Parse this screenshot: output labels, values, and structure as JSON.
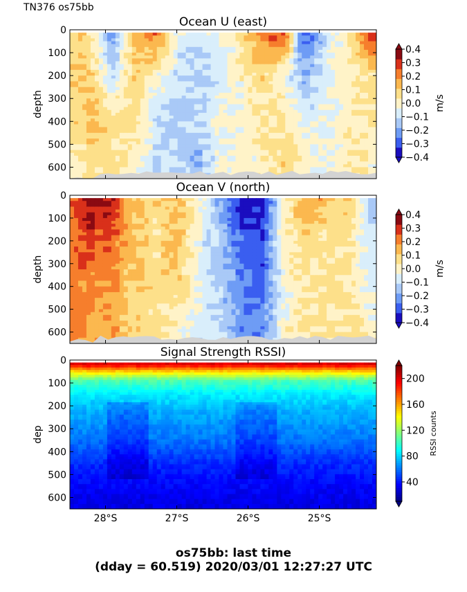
{
  "header": {
    "label": "TN376 os75bb"
  },
  "footer": {
    "line1": "os75bb: last time",
    "line2": "(dday = 60.519) 2020/03/01 12:27:27 UTC"
  },
  "colors": {
    "velocity_scale": [
      "#1a0dbf",
      "#3a5ef0",
      "#6e9cf5",
      "#a9c9f7",
      "#d9eefb",
      "#fff3c8",
      "#fde08a",
      "#fbb84f",
      "#f67e2c",
      "#d9301a",
      "#8a0a12"
    ],
    "rssi_scale": [
      "#00007f",
      "#0000ff",
      "#007fff",
      "#00ffff",
      "#7fff7f",
      "#ffff00",
      "#ff7f00",
      "#ff0000",
      "#7f0000"
    ],
    "bottom_mask": "#d3d3d3"
  },
  "chart_data": [
    {
      "type": "heatmap",
      "title": "Ocean U (east)",
      "xlabel": "",
      "ylabel": "depth",
      "colorbar_label": "m/s",
      "colorbar_ticks": [
        "0.4",
        "0.3",
        "0.2",
        "0.1",
        "0.0",
        "−0.1",
        "−0.2",
        "−0.3",
        "−0.4"
      ],
      "clim": [
        -0.4,
        0.4
      ],
      "ylim": [
        650,
        0
      ],
      "yticks": [
        "0",
        "100",
        "200",
        "300",
        "400",
        "500",
        "600"
      ],
      "xticks": [
        "28°S",
        "27°S",
        "26°S",
        "25°S"
      ],
      "x_labels_shown": false,
      "columns": [
        {
          "lat": -28.5,
          "profile": [
            0.15,
            0.1,
            0.05,
            0.0
          ]
        },
        {
          "lat": -28.2,
          "profile": [
            0.05,
            0.1,
            0.15,
            0.05
          ]
        },
        {
          "lat": -27.9,
          "profile": [
            -0.25,
            -0.1,
            0.05,
            0.1
          ]
        },
        {
          "lat": -27.6,
          "profile": [
            0.15,
            0.1,
            0.1,
            0.0
          ]
        },
        {
          "lat": -27.3,
          "profile": [
            0.25,
            0.0,
            -0.1,
            -0.1
          ]
        },
        {
          "lat": -27.0,
          "profile": [
            -0.05,
            -0.1,
            -0.15,
            -0.1
          ]
        },
        {
          "lat": -26.7,
          "profile": [
            -0.1,
            -0.15,
            -0.15,
            -0.2
          ]
        },
        {
          "lat": -26.4,
          "profile": [
            -0.05,
            -0.1,
            0.0,
            -0.05
          ]
        },
        {
          "lat": -26.1,
          "profile": [
            0.05,
            0.0,
            -0.05,
            0.0
          ]
        },
        {
          "lat": -25.8,
          "profile": [
            0.25,
            0.1,
            0.05,
            0.0
          ]
        },
        {
          "lat": -25.5,
          "profile": [
            0.3,
            -0.05,
            0.05,
            0.1
          ]
        },
        {
          "lat": -25.2,
          "profile": [
            -0.35,
            -0.2,
            -0.05,
            0.0
          ]
        },
        {
          "lat": -24.9,
          "profile": [
            -0.1,
            -0.05,
            -0.05,
            -0.05
          ]
        },
        {
          "lat": -24.6,
          "profile": [
            0.05,
            0.0,
            0.0,
            0.05
          ]
        },
        {
          "lat": -24.3,
          "profile": [
            0.3,
            0.05,
            0.05,
            0.0
          ]
        }
      ]
    },
    {
      "type": "heatmap",
      "title": "Ocean V (north)",
      "xlabel": "",
      "ylabel": "depth",
      "colorbar_label": "m/s",
      "colorbar_ticks": [
        "0.4",
        "0.3",
        "0.2",
        "0.1",
        "0.0",
        "−0.1",
        "−0.2",
        "−0.3",
        "−0.4"
      ],
      "clim": [
        -0.4,
        0.4
      ],
      "ylim": [
        650,
        0
      ],
      "yticks": [
        "0",
        "100",
        "200",
        "300",
        "400",
        "500",
        "600"
      ],
      "xticks": [
        "28°S",
        "27°S",
        "26°S",
        "25°S"
      ],
      "x_labels_shown": false,
      "columns": [
        {
          "lat": -28.5,
          "profile": [
            0.25,
            0.25,
            0.25,
            0.25
          ]
        },
        {
          "lat": -28.2,
          "profile": [
            0.4,
            0.3,
            0.2,
            0.15
          ]
        },
        {
          "lat": -27.9,
          "profile": [
            0.35,
            0.25,
            0.2,
            0.2
          ]
        },
        {
          "lat": -27.6,
          "profile": [
            0.15,
            0.15,
            0.1,
            0.1
          ]
        },
        {
          "lat": -27.3,
          "profile": [
            0.1,
            0.05,
            0.1,
            0.05
          ]
        },
        {
          "lat": -27.0,
          "profile": [
            0.15,
            0.15,
            0.1,
            0.0
          ]
        },
        {
          "lat": -26.7,
          "profile": [
            0.0,
            -0.05,
            -0.05,
            -0.1
          ]
        },
        {
          "lat": -26.4,
          "profile": [
            -0.2,
            -0.15,
            -0.15,
            -0.1
          ]
        },
        {
          "lat": -26.1,
          "profile": [
            -0.4,
            -0.3,
            -0.25,
            -0.25
          ]
        },
        {
          "lat": -25.8,
          "profile": [
            -0.4,
            -0.35,
            -0.3,
            -0.25
          ]
        },
        {
          "lat": -25.5,
          "profile": [
            0.0,
            0.0,
            -0.05,
            0.0
          ]
        },
        {
          "lat": -25.2,
          "profile": [
            0.2,
            0.1,
            0.05,
            0.05
          ]
        },
        {
          "lat": -24.9,
          "profile": [
            0.15,
            0.05,
            0.05,
            0.05
          ]
        },
        {
          "lat": -24.6,
          "profile": [
            0.1,
            0.05,
            0.05,
            0.05
          ]
        },
        {
          "lat": -24.3,
          "profile": [
            -0.15,
            -0.1,
            -0.05,
            0.0
          ]
        }
      ]
    },
    {
      "type": "heatmap",
      "title": "Signal Strength RSSI)",
      "xlabel": "",
      "ylabel": "dep",
      "colorbar_label": "RSSI counts",
      "colorbar_ticks": [
        "200",
        "160",
        "120",
        "80",
        "40"
      ],
      "clim": [
        10,
        220
      ],
      "ylim": [
        650,
        0
      ],
      "yticks": [
        "0",
        "100",
        "200",
        "300",
        "400",
        "500",
        "600"
      ],
      "xticks": [
        "28°S",
        "27°S",
        "26°S",
        "25°S"
      ],
      "x_labels_shown": true,
      "depth_profile": [
        {
          "depth": 20,
          "value": 200
        },
        {
          "depth": 50,
          "value": 150
        },
        {
          "depth": 90,
          "value": 105
        },
        {
          "depth": 150,
          "value": 85
        },
        {
          "depth": 230,
          "value": 72
        },
        {
          "depth": 350,
          "value": 60
        },
        {
          "depth": 450,
          "value": 45
        },
        {
          "depth": 550,
          "value": 36
        },
        {
          "depth": 650,
          "value": 30
        }
      ]
    }
  ]
}
